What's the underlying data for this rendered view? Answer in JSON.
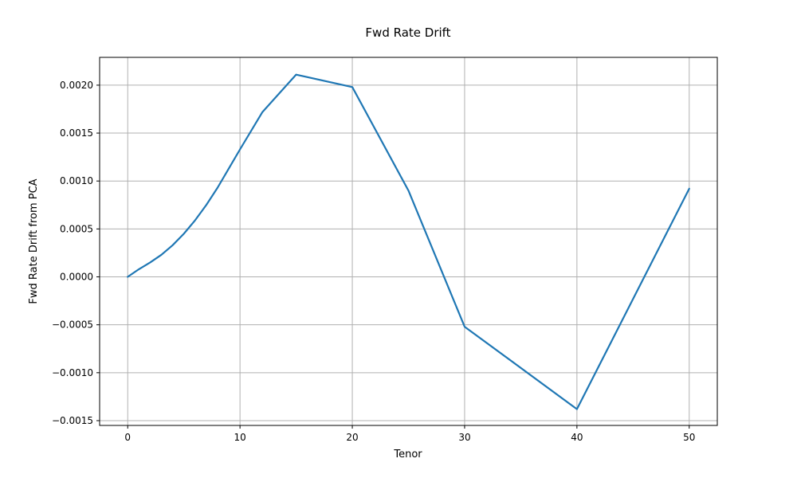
{
  "chart_data": {
    "type": "line",
    "title": "Fwd Rate Drift",
    "xlabel": "Tenor",
    "ylabel": "Fwd Rate Drift from PCA",
    "xlim": [
      -2.5,
      52.5
    ],
    "ylim": [
      -0.00155,
      0.00229
    ],
    "xticks": [
      0,
      10,
      20,
      30,
      40,
      50
    ],
    "xtick_labels": [
      "0",
      "10",
      "20",
      "30",
      "40",
      "50"
    ],
    "yticks": [
      -0.0015,
      -0.001,
      -0.0005,
      0.0,
      0.0005,
      0.001,
      0.0015,
      0.002
    ],
    "ytick_labels": [
      "−0.0015",
      "−0.0010",
      "−0.0005",
      "0.0000",
      "0.0005",
      "0.0010",
      "0.0015",
      "0.0020"
    ],
    "grid": true,
    "series": [
      {
        "color": "#1f77b4",
        "x": [
          0,
          1,
          2,
          3,
          4,
          5,
          6,
          7,
          8,
          9,
          10,
          12,
          15,
          20,
          25,
          30,
          40,
          50
        ],
        "y": [
          0.0,
          8e-05,
          0.00015,
          0.00023,
          0.00033,
          0.00045,
          0.00059,
          0.00075,
          0.00093,
          0.00113,
          0.00133,
          0.00172,
          0.00211,
          0.00198,
          0.0009,
          -0.00052,
          -0.00138,
          0.00092
        ]
      }
    ]
  }
}
